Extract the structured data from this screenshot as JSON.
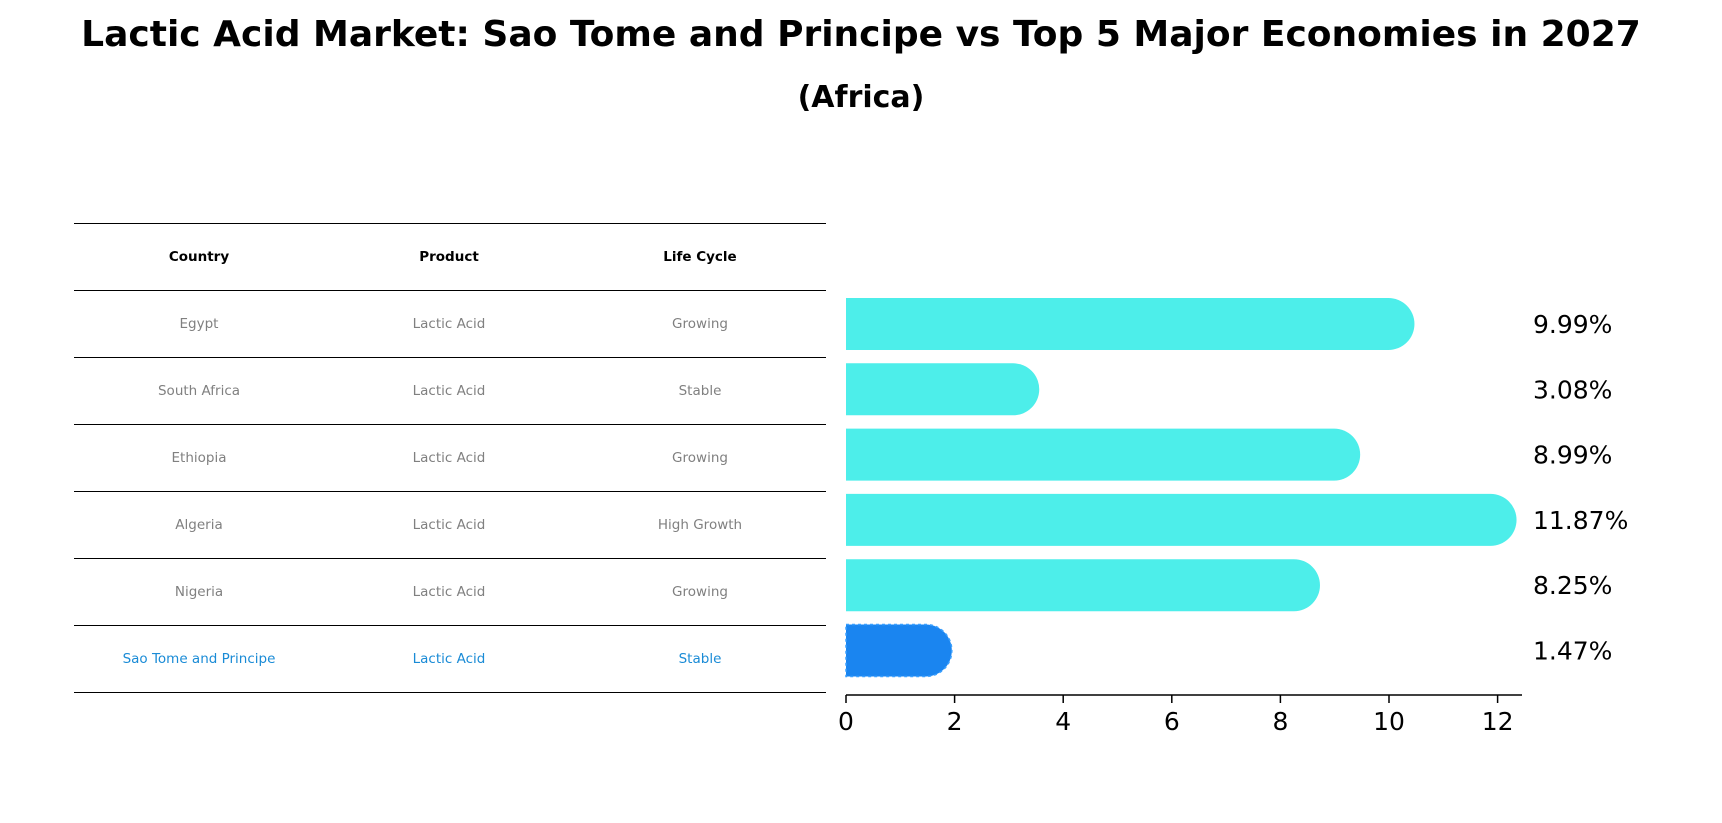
{
  "title": "Lactic Acid Market: Sao Tome and Principe vs Top 5 Major Economies in 2027",
  "subtitle": "(Africa)",
  "table": {
    "headers": [
      "Country",
      "Product",
      "Life Cycle"
    ],
    "rows": [
      [
        "Egypt",
        "Lactic Acid",
        "Growing"
      ],
      [
        "South Africa",
        "Lactic Acid",
        "Stable"
      ],
      [
        "Ethiopia",
        "Lactic Acid",
        "Growing"
      ],
      [
        "Algeria",
        "Lactic Acid",
        "High Growth"
      ],
      [
        "Nigeria",
        "Lactic Acid",
        "Growing"
      ],
      [
        "Sao Tome and Principe",
        "Lactic Acid",
        "Stable"
      ]
    ]
  },
  "colors": {
    "bar": "#4deeea",
    "highlight_bar": "#1a85f0",
    "highlight_text": "#1a8bd6",
    "table_text": "#808080"
  },
  "chart_data": {
    "type": "bar",
    "orientation": "horizontal",
    "categories": [
      "Egypt",
      "South Africa",
      "Ethiopia",
      "Algeria",
      "Nigeria",
      "Sao Tome and Principe"
    ],
    "values": [
      9.99,
      3.08,
      8.99,
      11.87,
      8.25,
      1.47
    ],
    "value_labels": [
      "9.99%",
      "3.08%",
      "8.99%",
      "11.87%",
      "8.25%",
      "1.47%"
    ],
    "highlight": "Sao Tome and Principe",
    "xlim": [
      0,
      12.5
    ],
    "xticks": [
      0,
      2,
      4,
      6,
      8,
      10,
      12
    ],
    "grid": false
  }
}
